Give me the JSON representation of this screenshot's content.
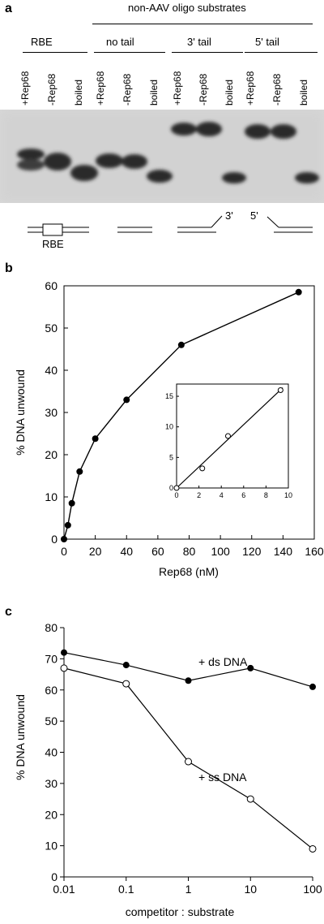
{
  "panels": {
    "a": {
      "letter": "a",
      "header": "non-AAV oligo substrates",
      "groups": [
        "RBE",
        "no tail",
        "3' tail",
        "5' tail"
      ],
      "lanes": [
        "+Rep68",
        "-Rep68",
        "boiled",
        "+Rep68",
        "-Rep68",
        "boiled",
        "+Rep68",
        "-Rep68",
        "boiled",
        "+Rep68",
        "-Rep68",
        "boiled"
      ],
      "diagram_labels": {
        "rbe": "RBE",
        "three_prime": "3'",
        "five_prime": "5'"
      }
    },
    "b": {
      "letter": "b",
      "inset_ticks_x": [
        "0",
        "2",
        "4",
        "6",
        "8",
        "10"
      ],
      "inset_ticks_y": [
        "0",
        "5",
        "10",
        "15"
      ]
    },
    "c": {
      "letter": "c"
    }
  },
  "chart_data": [
    {
      "type": "line",
      "xlabel": "Rep68 (nM)",
      "ylabel": "% DNA unwound",
      "xlim": [
        0,
        160
      ],
      "ylim": [
        0,
        60
      ],
      "x_ticks": [
        "0",
        "20",
        "40",
        "60",
        "80",
        "100",
        "120",
        "140",
        "160"
      ],
      "y_ticks": [
        "0",
        "10",
        "20",
        "30",
        "40",
        "50",
        "60"
      ],
      "series": [
        {
          "marker": "filled",
          "x": [
            0,
            2.5,
            5,
            10,
            20,
            40,
            75,
            150
          ],
          "y": [
            0,
            3.3,
            8.5,
            16,
            23.8,
            33,
            46,
            58.5
          ]
        }
      ],
      "inset": {
        "xlim": [
          0,
          10
        ],
        "ylim": [
          0,
          17
        ],
        "series": [
          {
            "marker": "open",
            "x": [
              0,
              2.3,
              4.6,
              9.3
            ],
            "y": [
              0,
              3.2,
              8.5,
              16
            ]
          }
        ]
      }
    },
    {
      "type": "line",
      "xlabel": "competitor : substrate",
      "ylabel": "% DNA unwound",
      "x_scale": "log",
      "xlim": [
        0.01,
        100
      ],
      "ylim": [
        0,
        80
      ],
      "x_ticks": [
        "0.01",
        "0.1",
        "1",
        "10",
        "100"
      ],
      "y_ticks": [
        "0",
        "10",
        "20",
        "30",
        "40",
        "50",
        "60",
        "70",
        "80"
      ],
      "series": [
        {
          "name": "+ ds DNA",
          "marker": "filled",
          "x": [
            0.01,
            0.1,
            1,
            10,
            100
          ],
          "y": [
            72,
            68,
            63,
            67,
            61
          ]
        },
        {
          "name": "+ ss DNA",
          "marker": "open",
          "x": [
            0.01,
            0.1,
            1,
            10,
            100
          ],
          "y": [
            67,
            62,
            37,
            25,
            9
          ]
        }
      ]
    }
  ]
}
